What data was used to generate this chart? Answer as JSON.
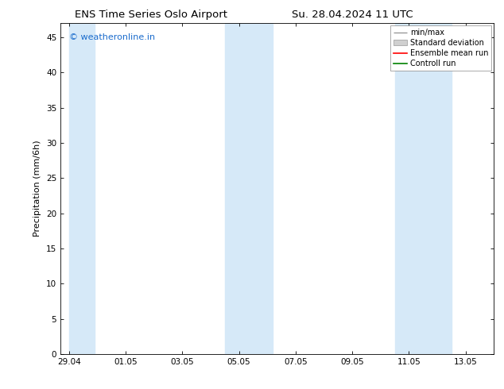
{
  "title_left": "ENS Time Series Oslo Airport",
  "title_right": "Su. 28.04.2024 11 UTC",
  "ylabel": "Precipitation (mm/6h)",
  "watermark": "© weatheronline.in",
  "watermark_color": "#1a6bcc",
  "background_color": "#ffffff",
  "plot_bg_color": "#ffffff",
  "yticks": [
    0,
    5,
    10,
    15,
    20,
    25,
    30,
    35,
    40,
    45
  ],
  "ylim": [
    0,
    47
  ],
  "xtick_labels": [
    "29.04",
    "01.05",
    "03.05",
    "05.05",
    "07.05",
    "09.05",
    "11.05",
    "13.05"
  ],
  "xlim_days": [
    0.0,
    15.0
  ],
  "shaded_bands": [
    {
      "x_start": 0.0,
      "x_end": 0.9,
      "color": "#d6e9f8",
      "alpha": 1.0
    },
    {
      "x_start": 5.5,
      "x_end": 7.2,
      "color": "#d6e9f8",
      "alpha": 1.0
    },
    {
      "x_start": 11.5,
      "x_end": 13.5,
      "color": "#d6e9f8",
      "alpha": 1.0
    }
  ],
  "legend_labels": [
    "min/max",
    "Standard deviation",
    "Ensemble mean run",
    "Controll run"
  ],
  "legend_colors_line": [
    "#999999",
    "#cccccc",
    "#ff0000",
    "#008000"
  ],
  "title_fontsize": 9.5,
  "label_fontsize": 8,
  "tick_fontsize": 7.5,
  "watermark_fontsize": 8,
  "legend_fontsize": 7
}
